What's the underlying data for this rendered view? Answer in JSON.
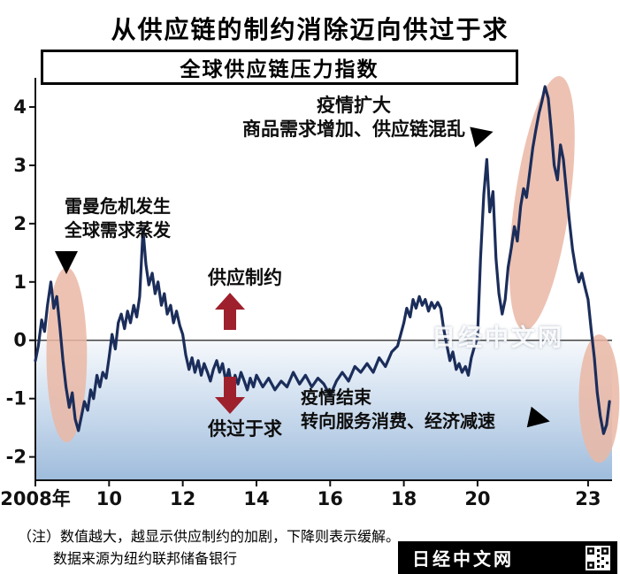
{
  "title": "从供应链的制约消除迈向供过于求",
  "subtitle": "全球供应链压力指数",
  "watermark": "日经中文网",
  "annotations": {
    "lehman": {
      "line1": "雷曼危机发生",
      "line2": "全球需求蒸发"
    },
    "pandemic_expand": {
      "line1": "疫情扩大",
      "line2": "商品需求增加、供应链混乱"
    },
    "supply_constraint": "供应制约",
    "oversupply": "供过于求",
    "pandemic_end": {
      "line1": "疫情结束",
      "line2": "转向服务消费、经济减速"
    }
  },
  "footnote": {
    "line1": "（注）数值越大，越显示供应制约的加剧，下降则表示缓解。",
    "line2": "数据来源为纽约联邦储备银行"
  },
  "brand": {
    "label": "日经中文网"
  },
  "colors": {
    "line": "#1b2d5a",
    "highlight": "#eab7a4",
    "arrow": "#9e202d",
    "gradient_top": "#f6f9fc",
    "gradient_bottom": "#9fbcdc",
    "axis": "#111111",
    "zero_line": "#444444"
  },
  "chart_data": {
    "type": "line",
    "title": "全球供应链压力指数",
    "x_range": [
      2008,
      2023.65
    ],
    "y_range": [
      -2.4,
      4.5
    ],
    "x_ticks": [
      {
        "v": 2008,
        "label": "2008年"
      },
      {
        "v": 2010,
        "label": "10"
      },
      {
        "v": 2012,
        "label": "12"
      },
      {
        "v": 2014,
        "label": "14"
      },
      {
        "v": 2016,
        "label": "16"
      },
      {
        "v": 2018,
        "label": "18"
      },
      {
        "v": 2020,
        "label": "20"
      },
      {
        "v": 2023,
        "label": "23"
      }
    ],
    "y_ticks": [
      4,
      3,
      2,
      1,
      0,
      -1,
      -2
    ],
    "highlights": [
      {
        "cx": 2008.85,
        "cy": -0.25,
        "rx": 0.55,
        "ry": 1.5,
        "rotate": 0
      },
      {
        "cx": 2021.75,
        "cy": 2.35,
        "rx": 0.75,
        "ry": 2.2,
        "rotate": 8
      },
      {
        "cx": 2023.3,
        "cy": -1.0,
        "rx": 0.55,
        "ry": 1.1,
        "rotate": 0
      }
    ],
    "series": [
      {
        "name": "全球供应链压力指数",
        "points": [
          [
            2008.0,
            -0.35
          ],
          [
            2008.08,
            -0.1
          ],
          [
            2008.17,
            0.35
          ],
          [
            2008.25,
            0.15
          ],
          [
            2008.33,
            0.6
          ],
          [
            2008.42,
            1.0
          ],
          [
            2008.5,
            0.55
          ],
          [
            2008.58,
            0.75
          ],
          [
            2008.67,
            0.2
          ],
          [
            2008.75,
            -0.35
          ],
          [
            2008.83,
            -0.8
          ],
          [
            2008.92,
            -1.15
          ],
          [
            2009.0,
            -0.9
          ],
          [
            2009.08,
            -1.35
          ],
          [
            2009.17,
            -1.55
          ],
          [
            2009.25,
            -1.3
          ],
          [
            2009.33,
            -1.05
          ],
          [
            2009.42,
            -1.2
          ],
          [
            2009.5,
            -0.85
          ],
          [
            2009.58,
            -1.0
          ],
          [
            2009.67,
            -0.6
          ],
          [
            2009.75,
            -0.8
          ],
          [
            2009.83,
            -0.55
          ],
          [
            2009.92,
            -0.65
          ],
          [
            2010.0,
            -0.3
          ],
          [
            2010.08,
            0.1
          ],
          [
            2010.17,
            -0.15
          ],
          [
            2010.25,
            0.3
          ],
          [
            2010.33,
            0.45
          ],
          [
            2010.42,
            0.2
          ],
          [
            2010.5,
            0.5
          ],
          [
            2010.58,
            0.3
          ],
          [
            2010.67,
            0.6
          ],
          [
            2010.75,
            0.4
          ],
          [
            2010.83,
            0.75
          ],
          [
            2010.92,
            1.9
          ],
          [
            2011.0,
            1.3
          ],
          [
            2011.08,
            0.95
          ],
          [
            2011.17,
            1.15
          ],
          [
            2011.25,
            0.8
          ],
          [
            2011.33,
            1.0
          ],
          [
            2011.42,
            0.6
          ],
          [
            2011.5,
            0.8
          ],
          [
            2011.58,
            0.45
          ],
          [
            2011.67,
            0.6
          ],
          [
            2011.75,
            0.3
          ],
          [
            2011.83,
            0.5
          ],
          [
            2011.92,
            0.25
          ],
          [
            2012.0,
            0.1
          ],
          [
            2012.08,
            -0.25
          ],
          [
            2012.17,
            -0.5
          ],
          [
            2012.25,
            -0.3
          ],
          [
            2012.33,
            -0.55
          ],
          [
            2012.42,
            -0.35
          ],
          [
            2012.5,
            -0.6
          ],
          [
            2012.58,
            -0.4
          ],
          [
            2012.67,
            -0.55
          ],
          [
            2012.75,
            -0.7
          ],
          [
            2012.83,
            -0.5
          ],
          [
            2012.92,
            -0.35
          ],
          [
            2013.0,
            -0.55
          ],
          [
            2013.08,
            -0.4
          ],
          [
            2013.17,
            -0.7
          ],
          [
            2013.25,
            -0.5
          ],
          [
            2013.33,
            -0.8
          ],
          [
            2013.42,
            -0.6
          ],
          [
            2013.5,
            -0.75
          ],
          [
            2013.58,
            -0.55
          ],
          [
            2013.67,
            -0.7
          ],
          [
            2013.75,
            -0.85
          ],
          [
            2013.83,
            -0.65
          ],
          [
            2013.92,
            -0.8
          ],
          [
            2014.0,
            -0.6
          ],
          [
            2014.17,
            -0.8
          ],
          [
            2014.33,
            -0.65
          ],
          [
            2014.5,
            -0.85
          ],
          [
            2014.67,
            -0.7
          ],
          [
            2014.83,
            -0.8
          ],
          [
            2015.0,
            -0.55
          ],
          [
            2015.17,
            -0.75
          ],
          [
            2015.33,
            -0.6
          ],
          [
            2015.5,
            -0.8
          ],
          [
            2015.67,
            -0.65
          ],
          [
            2015.83,
            -0.75
          ],
          [
            2016.0,
            -0.95
          ],
          [
            2016.17,
            -0.7
          ],
          [
            2016.33,
            -0.55
          ],
          [
            2016.5,
            -0.7
          ],
          [
            2016.67,
            -0.45
          ],
          [
            2016.83,
            -0.55
          ],
          [
            2017.0,
            -0.4
          ],
          [
            2017.17,
            -0.55
          ],
          [
            2017.33,
            -0.3
          ],
          [
            2017.5,
            -0.45
          ],
          [
            2017.67,
            -0.2
          ],
          [
            2017.83,
            -0.1
          ],
          [
            2018.0,
            0.3
          ],
          [
            2018.08,
            0.55
          ],
          [
            2018.17,
            0.4
          ],
          [
            2018.25,
            0.7
          ],
          [
            2018.33,
            0.55
          ],
          [
            2018.42,
            0.75
          ],
          [
            2018.5,
            0.6
          ],
          [
            2018.58,
            0.7
          ],
          [
            2018.67,
            0.5
          ],
          [
            2018.75,
            0.65
          ],
          [
            2018.83,
            0.55
          ],
          [
            2018.92,
            0.65
          ],
          [
            2019.0,
            0.55
          ],
          [
            2019.08,
            0.2
          ],
          [
            2019.17,
            -0.1
          ],
          [
            2019.25,
            -0.35
          ],
          [
            2019.33,
            -0.2
          ],
          [
            2019.42,
            -0.5
          ],
          [
            2019.5,
            -0.4
          ],
          [
            2019.58,
            -0.55
          ],
          [
            2019.67,
            -0.45
          ],
          [
            2019.75,
            -0.6
          ],
          [
            2019.83,
            -0.3
          ],
          [
            2019.92,
            -0.1
          ],
          [
            2020.0,
            0.05
          ],
          [
            2020.08,
            1.4
          ],
          [
            2020.17,
            2.5
          ],
          [
            2020.25,
            3.1
          ],
          [
            2020.33,
            2.2
          ],
          [
            2020.42,
            2.55
          ],
          [
            2020.5,
            1.4
          ],
          [
            2020.58,
            0.8
          ],
          [
            2020.67,
            0.45
          ],
          [
            2020.75,
            0.7
          ],
          [
            2020.83,
            1.25
          ],
          [
            2020.92,
            1.6
          ],
          [
            2021.0,
            1.95
          ],
          [
            2021.08,
            1.7
          ],
          [
            2021.17,
            2.3
          ],
          [
            2021.25,
            2.6
          ],
          [
            2021.33,
            2.45
          ],
          [
            2021.42,
            2.9
          ],
          [
            2021.5,
            3.3
          ],
          [
            2021.58,
            3.6
          ],
          [
            2021.67,
            3.9
          ],
          [
            2021.75,
            4.1
          ],
          [
            2021.83,
            4.35
          ],
          [
            2021.92,
            4.15
          ],
          [
            2022.0,
            3.6
          ],
          [
            2022.08,
            3.0
          ],
          [
            2022.17,
            2.75
          ],
          [
            2022.25,
            3.35
          ],
          [
            2022.33,
            3.1
          ],
          [
            2022.42,
            2.5
          ],
          [
            2022.5,
            2.0
          ],
          [
            2022.58,
            1.55
          ],
          [
            2022.67,
            1.2
          ],
          [
            2022.75,
            1.0
          ],
          [
            2022.83,
            1.15
          ],
          [
            2022.92,
            0.9
          ],
          [
            2023.0,
            0.7
          ],
          [
            2023.08,
            0.2
          ],
          [
            2023.17,
            -0.3
          ],
          [
            2023.25,
            -0.9
          ],
          [
            2023.33,
            -1.3
          ],
          [
            2023.42,
            -1.6
          ],
          [
            2023.5,
            -1.45
          ],
          [
            2023.58,
            -1.05
          ]
        ]
      }
    ]
  }
}
